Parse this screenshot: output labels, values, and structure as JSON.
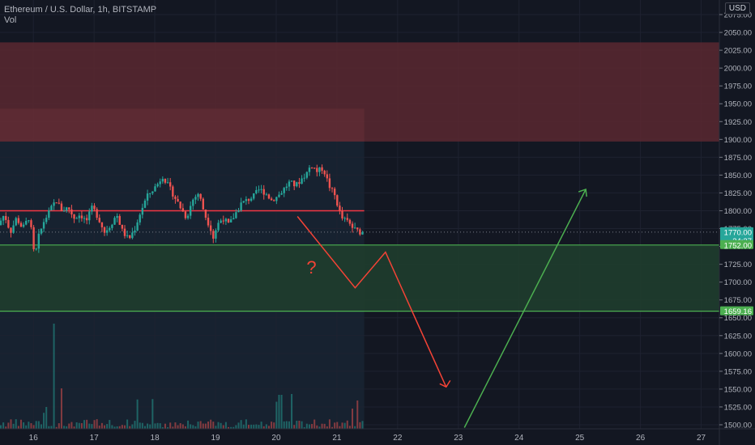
{
  "header": {
    "symbol_title": "Ethereum / U.S. Dollar, 1h, BITSTAMP",
    "volume_label": "Vol",
    "currency_button": "USD"
  },
  "colors": {
    "background": "#131722",
    "grid": "#1e2230",
    "up": "#26a69a",
    "down": "#ef5350",
    "resistance_zone": "#5a2830",
    "support_zone": "#1f3d2e",
    "support_line": "#4caf50",
    "red_line": "#f23645",
    "projection_down": "#f44336",
    "projection_up": "#4caf50"
  },
  "price_badges": [
    {
      "label": "1770.00",
      "value": 1770,
      "color": "#26a69a",
      "sublabel": "24:27"
    },
    {
      "label": "1752.00",
      "value": 1752,
      "color": "#4caf50"
    },
    {
      "label": "1659.16",
      "value": 1659.16,
      "color": "#4caf50"
    }
  ],
  "annotation": {
    "text": "?",
    "color": "#f44336"
  },
  "chart_data": {
    "type": "candlestick",
    "title": "Ethereum / U.S. Dollar, 1h, BITSTAMP",
    "x_ticks": [
      "16",
      "17",
      "18",
      "19",
      "20",
      "21",
      "22",
      "23",
      "24",
      "25",
      "26",
      "27"
    ],
    "y_ticks": [
      1500,
      1525,
      1550,
      1575,
      1600,
      1625,
      1650,
      1675,
      1700,
      1725,
      1750,
      1775,
      1800,
      1825,
      1850,
      1875,
      1900,
      1925,
      1950,
      1975,
      2000,
      2025,
      2050,
      2075
    ],
    "ylim": [
      1496,
      2082
    ],
    "xlim_days": [
      15.45,
      27.3
    ],
    "last_price": 1770.0,
    "countdown": "24:27",
    "zones": [
      {
        "name": "resistance",
        "from": 1897,
        "to": 2036
      },
      {
        "name": "support",
        "from": 1659.16,
        "to": 1752
      }
    ],
    "horizontal_lines": [
      {
        "value": 1800,
        "from_day": 15.45,
        "to_day": 21.45
      },
      {
        "value": 1752,
        "from_day": 15.45,
        "to_day": 27.3
      },
      {
        "value": 1659.16,
        "from_day": 15.45,
        "to_day": 27.3
      }
    ],
    "projection_down": [
      [
        20.35,
        1792
      ],
      [
        21.3,
        1692
      ],
      [
        21.8,
        1742
      ],
      [
        22.8,
        1553
      ]
    ],
    "projection_up": [
      [
        23.1,
        1496
      ],
      [
        25.1,
        1830
      ]
    ],
    "price_path": [
      [
        15.45,
        1780
      ],
      [
        15.55,
        1795
      ],
      [
        15.65,
        1770
      ],
      [
        15.75,
        1790
      ],
      [
        15.85,
        1775
      ],
      [
        15.95,
        1790
      ],
      [
        16.0,
        1770
      ],
      [
        16.05,
        1730
      ],
      [
        16.1,
        1760
      ],
      [
        16.2,
        1785
      ],
      [
        16.3,
        1800
      ],
      [
        16.4,
        1815
      ],
      [
        16.5,
        1800
      ],
      [
        16.6,
        1805
      ],
      [
        16.7,
        1790
      ],
      [
        16.8,
        1795
      ],
      [
        16.9,
        1785
      ],
      [
        17.0,
        1805
      ],
      [
        17.1,
        1790
      ],
      [
        17.2,
        1770
      ],
      [
        17.3,
        1780
      ],
      [
        17.4,
        1795
      ],
      [
        17.5,
        1770
      ],
      [
        17.6,
        1760
      ],
      [
        17.7,
        1775
      ],
      [
        17.8,
        1800
      ],
      [
        17.9,
        1820
      ],
      [
        18.0,
        1830
      ],
      [
        18.1,
        1840
      ],
      [
        18.15,
        1850
      ],
      [
        18.25,
        1835
      ],
      [
        18.35,
        1820
      ],
      [
        18.45,
        1805
      ],
      [
        18.55,
        1790
      ],
      [
        18.65,
        1815
      ],
      [
        18.75,
        1825
      ],
      [
        18.85,
        1795
      ],
      [
        18.95,
        1775
      ],
      [
        19.0,
        1760
      ],
      [
        19.05,
        1780
      ],
      [
        19.15,
        1790
      ],
      [
        19.25,
        1780
      ],
      [
        19.35,
        1795
      ],
      [
        19.45,
        1810
      ],
      [
        19.55,
        1815
      ],
      [
        19.65,
        1820
      ],
      [
        19.75,
        1830
      ],
      [
        19.85,
        1825
      ],
      [
        19.95,
        1815
      ],
      [
        20.05,
        1820
      ],
      [
        20.15,
        1830
      ],
      [
        20.25,
        1840
      ],
      [
        20.35,
        1835
      ],
      [
        20.45,
        1845
      ],
      [
        20.55,
        1855
      ],
      [
        20.6,
        1865
      ],
      [
        20.7,
        1855
      ],
      [
        20.8,
        1860
      ],
      [
        20.9,
        1835
      ],
      [
        21.0,
        1820
      ],
      [
        21.05,
        1805
      ],
      [
        21.1,
        1790
      ],
      [
        21.2,
        1785
      ],
      [
        21.3,
        1775
      ],
      [
        21.4,
        1770
      ]
    ],
    "volume_note": "volume bars along bottom of price area, tallest spike on Aug 16"
  }
}
